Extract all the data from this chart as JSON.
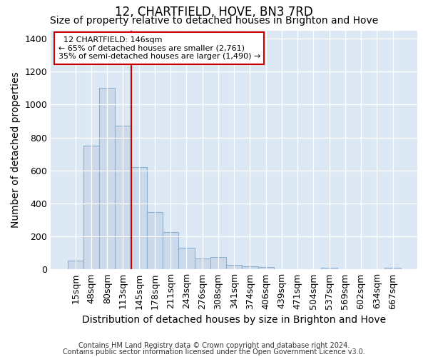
{
  "title": "12, CHARTFIELD, HOVE, BN3 7RD",
  "subtitle": "Size of property relative to detached houses in Brighton and Hove",
  "xlabel": "Distribution of detached houses by size in Brighton and Hove",
  "ylabel": "Number of detached properties",
  "footnote1": "Contains HM Land Registry data © Crown copyright and database right 2024.",
  "footnote2": "Contains public sector information licensed under the Open Government Licence v3.0.",
  "categories": [
    "15sqm",
    "48sqm",
    "80sqm",
    "113sqm",
    "145sqm",
    "178sqm",
    "211sqm",
    "243sqm",
    "276sqm",
    "308sqm",
    "341sqm",
    "374sqm",
    "406sqm",
    "439sqm",
    "471sqm",
    "504sqm",
    "537sqm",
    "569sqm",
    "602sqm",
    "634sqm",
    "667sqm"
  ],
  "values": [
    52,
    750,
    1100,
    870,
    620,
    348,
    228,
    132,
    65,
    75,
    28,
    20,
    15,
    0,
    0,
    0,
    12,
    0,
    0,
    0,
    12
  ],
  "bar_color": "#ccd9ea",
  "bar_edge_color": "#8ab0d0",
  "vline_color": "#cc0000",
  "vline_index": 4,
  "annotation_title": "12 CHARTFIELD: 146sqm",
  "annotation_line1": "← 65% of detached houses are smaller (2,761)",
  "annotation_line2": "35% of semi-detached houses are larger (1,490) →",
  "annotation_box_color": "#ffffff",
  "annotation_box_edge": "#cc0000",
  "ylim": [
    0,
    1450
  ],
  "yticks": [
    0,
    200,
    400,
    600,
    800,
    1000,
    1200,
    1400
  ],
  "fig_bg_color": "#ffffff",
  "plot_bg_color": "#dce9f5",
  "title_fontsize": 12,
  "subtitle_fontsize": 10,
  "axis_label_fontsize": 10,
  "tick_fontsize": 9,
  "footnote_fontsize": 7
}
